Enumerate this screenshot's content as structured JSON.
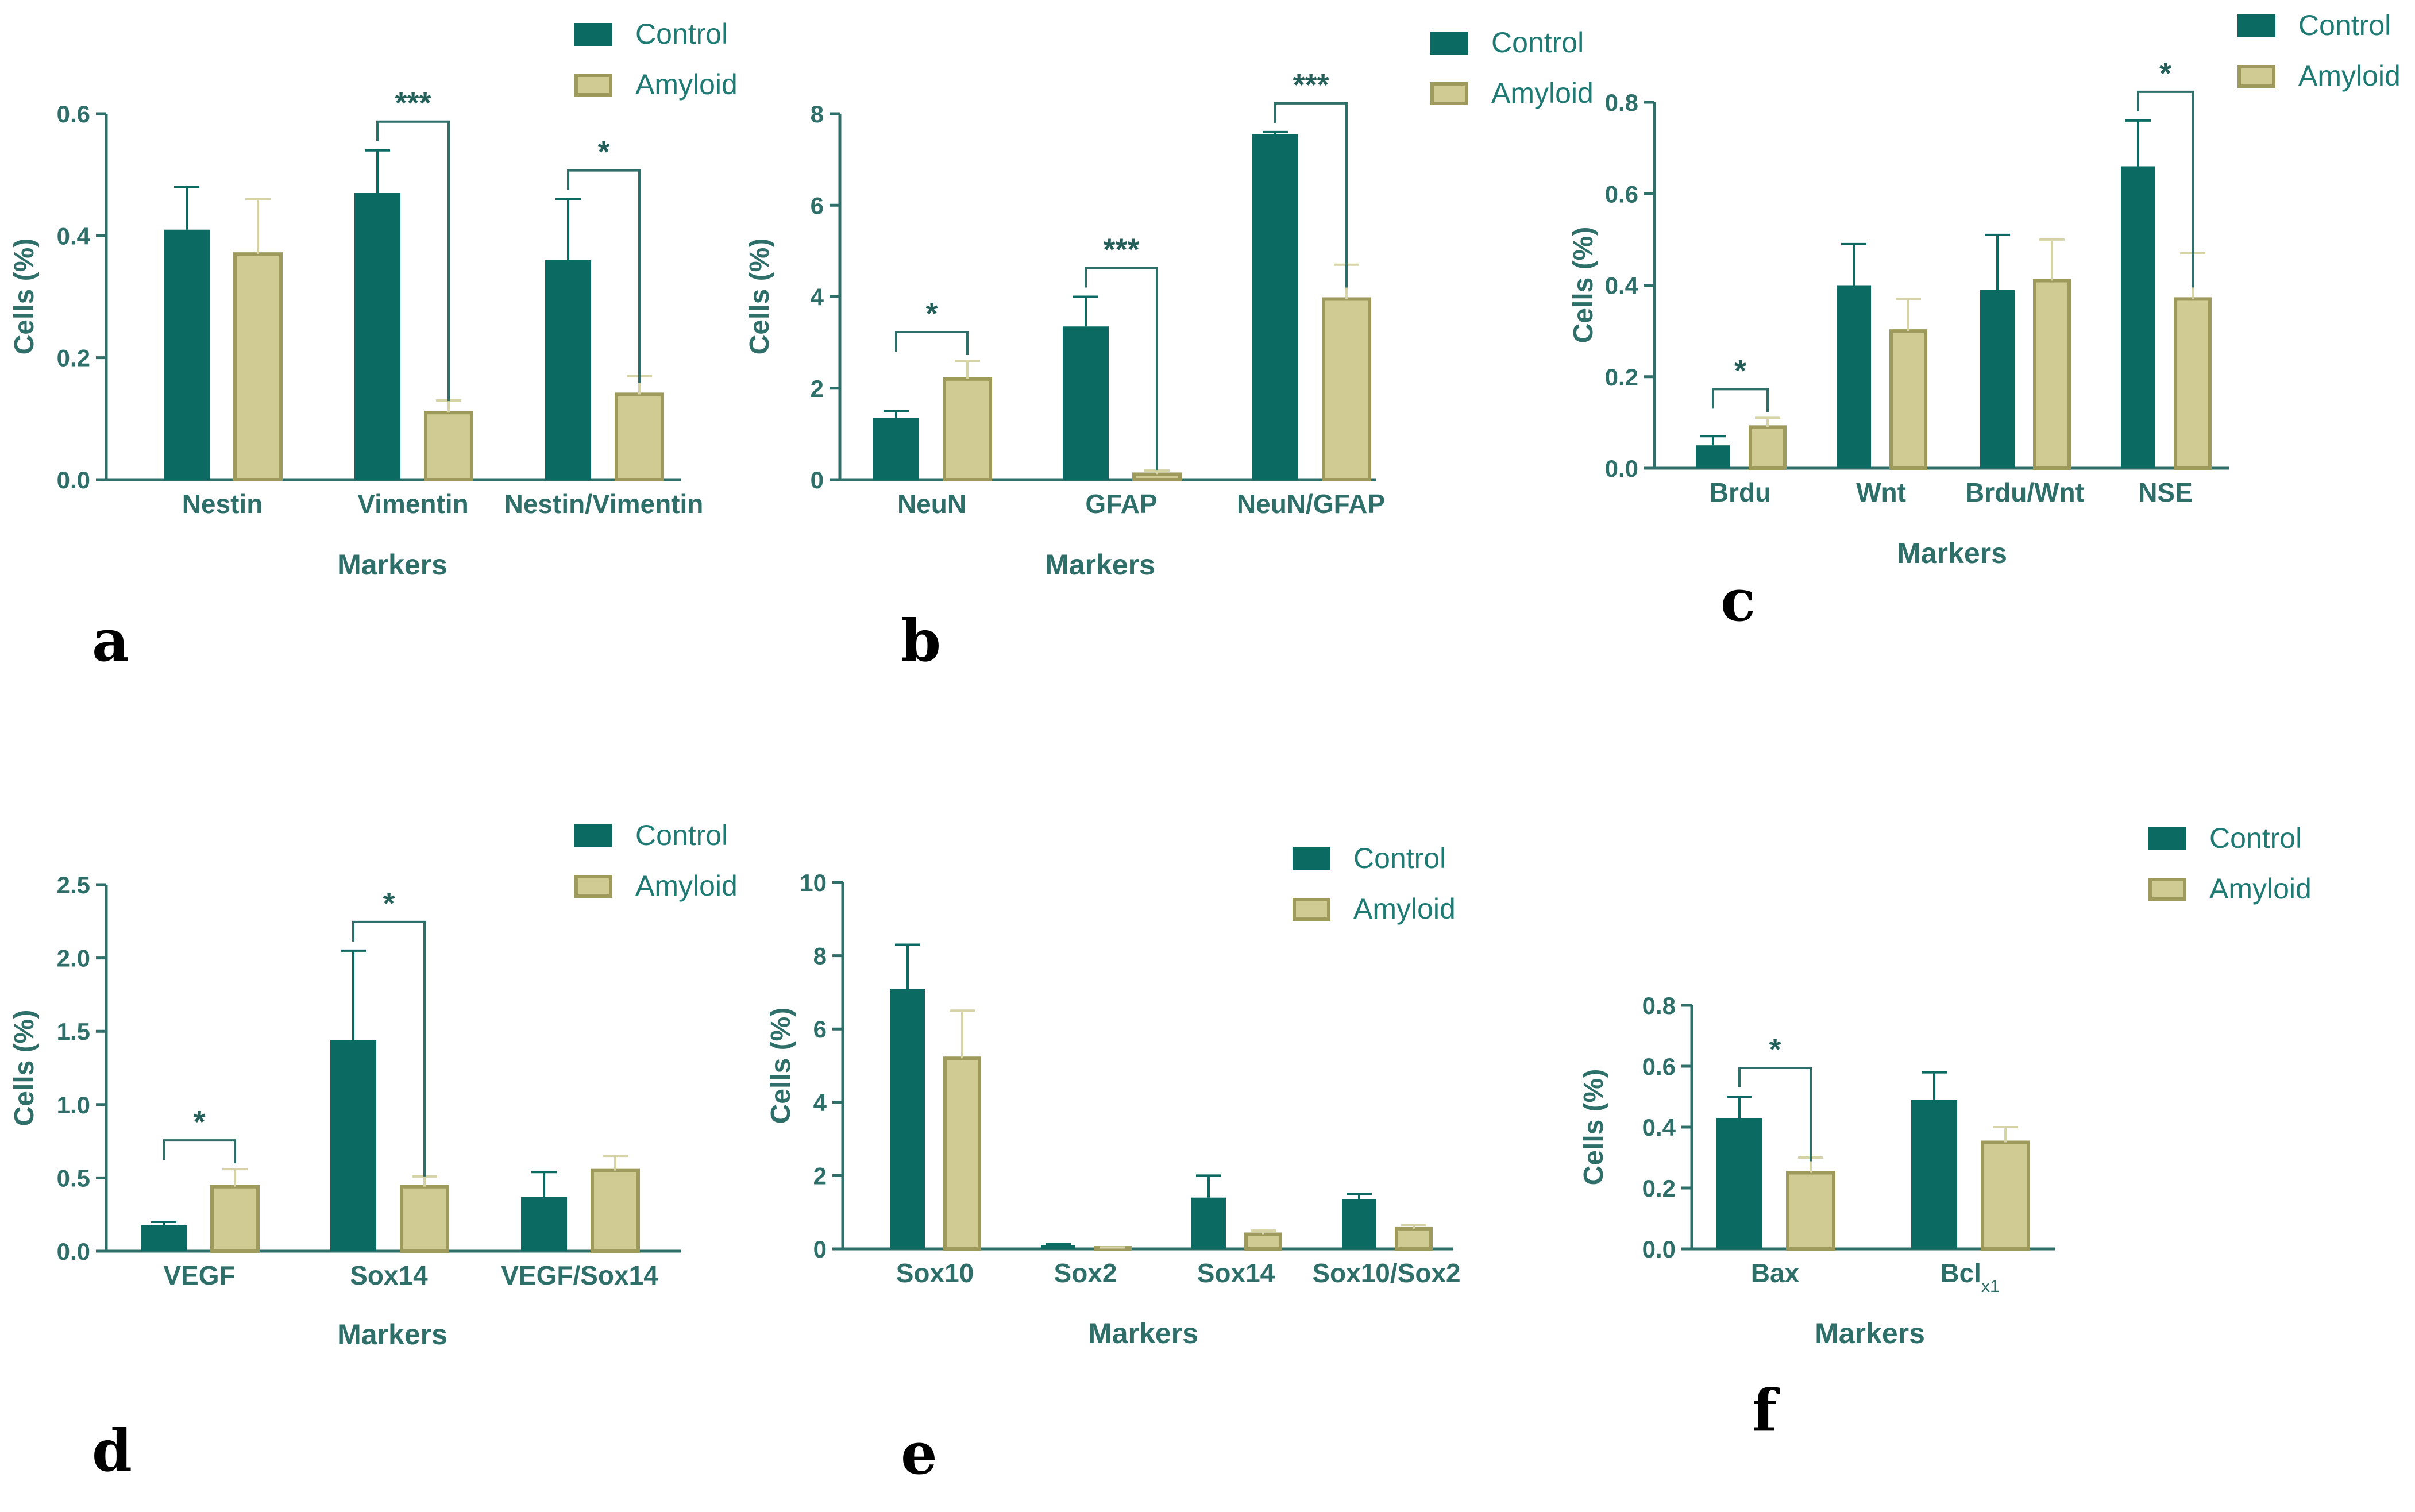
{
  "colors": {
    "control": "#0b6b62",
    "amyloid": "#cfcb93",
    "amyloid_edge": "#9d9a5c",
    "axis": "#2f6f6a",
    "error_control": "#0b6b62",
    "error_amyloid": "#d6d3a6"
  },
  "chart_data": [
    {
      "panel": "a",
      "type": "bar",
      "categories": [
        "Nestin",
        "Vimentin",
        "Nestin/Vimentin"
      ],
      "series": [
        {
          "name": "Control",
          "values": [
            0.41,
            0.47,
            0.36
          ],
          "errors": [
            0.07,
            0.07,
            0.1
          ]
        },
        {
          "name": "Amyloid",
          "values": [
            0.37,
            0.11,
            0.14
          ],
          "errors": [
            0.09,
            0.02,
            0.03
          ]
        }
      ],
      "xlabel": "Markers",
      "ylabel": "Cells (%)",
      "ylim": [
        0,
        0.6
      ],
      "yticks": [
        "0.0",
        "0.2",
        "0.4",
        "0.6"
      ],
      "legend": [
        "Control",
        "Amyloid"
      ],
      "significance": [
        {
          "category": 1,
          "label": "***"
        },
        {
          "category": 2,
          "label": "*"
        }
      ]
    },
    {
      "panel": "b",
      "type": "bar",
      "categories": [
        "NeuN",
        "GFAP",
        "NeuN/GFAP"
      ],
      "series": [
        {
          "name": "Control",
          "values": [
            1.35,
            3.35,
            7.55
          ],
          "errors": [
            0.15,
            0.65,
            0.05
          ]
        },
        {
          "name": "Amyloid",
          "values": [
            2.2,
            0.12,
            3.95
          ],
          "errors": [
            0.4,
            0.08,
            0.75
          ]
        }
      ],
      "xlabel": "Markers",
      "ylabel": "Cells (%)",
      "ylim": [
        0,
        8
      ],
      "yticks": [
        "0",
        "2",
        "4",
        "6",
        "8"
      ],
      "legend": [
        "Control",
        "Amyloid"
      ],
      "significance": [
        {
          "category": 0,
          "label": "*"
        },
        {
          "category": 1,
          "label": "***"
        },
        {
          "category": 2,
          "label": "***"
        }
      ]
    },
    {
      "panel": "c",
      "type": "bar",
      "categories": [
        "Brdu",
        "Wnt",
        "Brdu/Wnt",
        "NSE"
      ],
      "series": [
        {
          "name": "Control",
          "values": [
            0.05,
            0.4,
            0.39,
            0.66
          ],
          "errors": [
            0.02,
            0.09,
            0.12,
            0.1
          ]
        },
        {
          "name": "Amyloid",
          "values": [
            0.09,
            0.3,
            0.41,
            0.37
          ],
          "errors": [
            0.02,
            0.07,
            0.09,
            0.1
          ]
        }
      ],
      "xlabel": "Markers",
      "ylabel": "Cells (%)",
      "ylim": [
        0,
        0.8
      ],
      "yticks": [
        "0.0",
        "0.2",
        "0.4",
        "0.6",
        "0.8"
      ],
      "legend": [
        "Control",
        "Amyloid"
      ],
      "significance": [
        {
          "category": 0,
          "label": "*"
        },
        {
          "category": 3,
          "label": "*"
        }
      ]
    },
    {
      "panel": "d",
      "type": "bar",
      "categories": [
        "VEGF",
        "Sox14",
        "VEGF/Sox14"
      ],
      "series": [
        {
          "name": "Control",
          "values": [
            0.18,
            1.44,
            0.37
          ],
          "errors": [
            0.02,
            0.61,
            0.17
          ]
        },
        {
          "name": "Amyloid",
          "values": [
            0.44,
            0.44,
            0.55
          ],
          "errors": [
            0.12,
            0.07,
            0.1
          ]
        }
      ],
      "xlabel": "Markers",
      "ylabel": "Cells (%)",
      "ylim": [
        0,
        2.5
      ],
      "yticks": [
        "0.0",
        "0.5",
        "1.0",
        "1.5",
        "2.0",
        "2.5"
      ],
      "legend": [
        "Control",
        "Amyloid"
      ],
      "significance": [
        {
          "category": 0,
          "label": "*"
        },
        {
          "category": 1,
          "label": "*"
        }
      ]
    },
    {
      "panel": "e",
      "type": "bar",
      "categories": [
        "Sox10",
        "Sox2",
        "Sox14",
        "Sox10/Sox2"
      ],
      "series": [
        {
          "name": "Control",
          "values": [
            7.1,
            0.1,
            1.4,
            1.35
          ],
          "errors": [
            1.2,
            0.03,
            0.6,
            0.15
          ]
        },
        {
          "name": "Amyloid",
          "values": [
            5.2,
            0.03,
            0.4,
            0.55
          ],
          "errors": [
            1.3,
            0.01,
            0.1,
            0.1
          ]
        }
      ],
      "xlabel": "Markers",
      "ylabel": "Cells (%)",
      "ylim": [
        0,
        10
      ],
      "yticks": [
        "0",
        "2",
        "4",
        "6",
        "8",
        "10"
      ],
      "legend": [
        "Control",
        "Amyloid"
      ],
      "significance": []
    },
    {
      "panel": "f",
      "type": "bar",
      "categories": [
        "Bax",
        "Bcl"
      ],
      "category_subscripts": [
        "",
        "x1"
      ],
      "series": [
        {
          "name": "Control",
          "values": [
            0.43,
            0.49
          ],
          "errors": [
            0.07,
            0.09
          ]
        },
        {
          "name": "Amyloid",
          "values": [
            0.25,
            0.35
          ],
          "errors": [
            0.05,
            0.05
          ]
        }
      ],
      "xlabel": "Markers",
      "ylabel": "Cells (%)",
      "ylim": [
        0,
        0.8
      ],
      "yticks": [
        "0.0",
        "0.2",
        "0.4",
        "0.6",
        "0.8"
      ],
      "legend": [
        "Control",
        "Amyloid"
      ],
      "significance": [
        {
          "category": 0,
          "label": "*"
        }
      ]
    }
  ]
}
